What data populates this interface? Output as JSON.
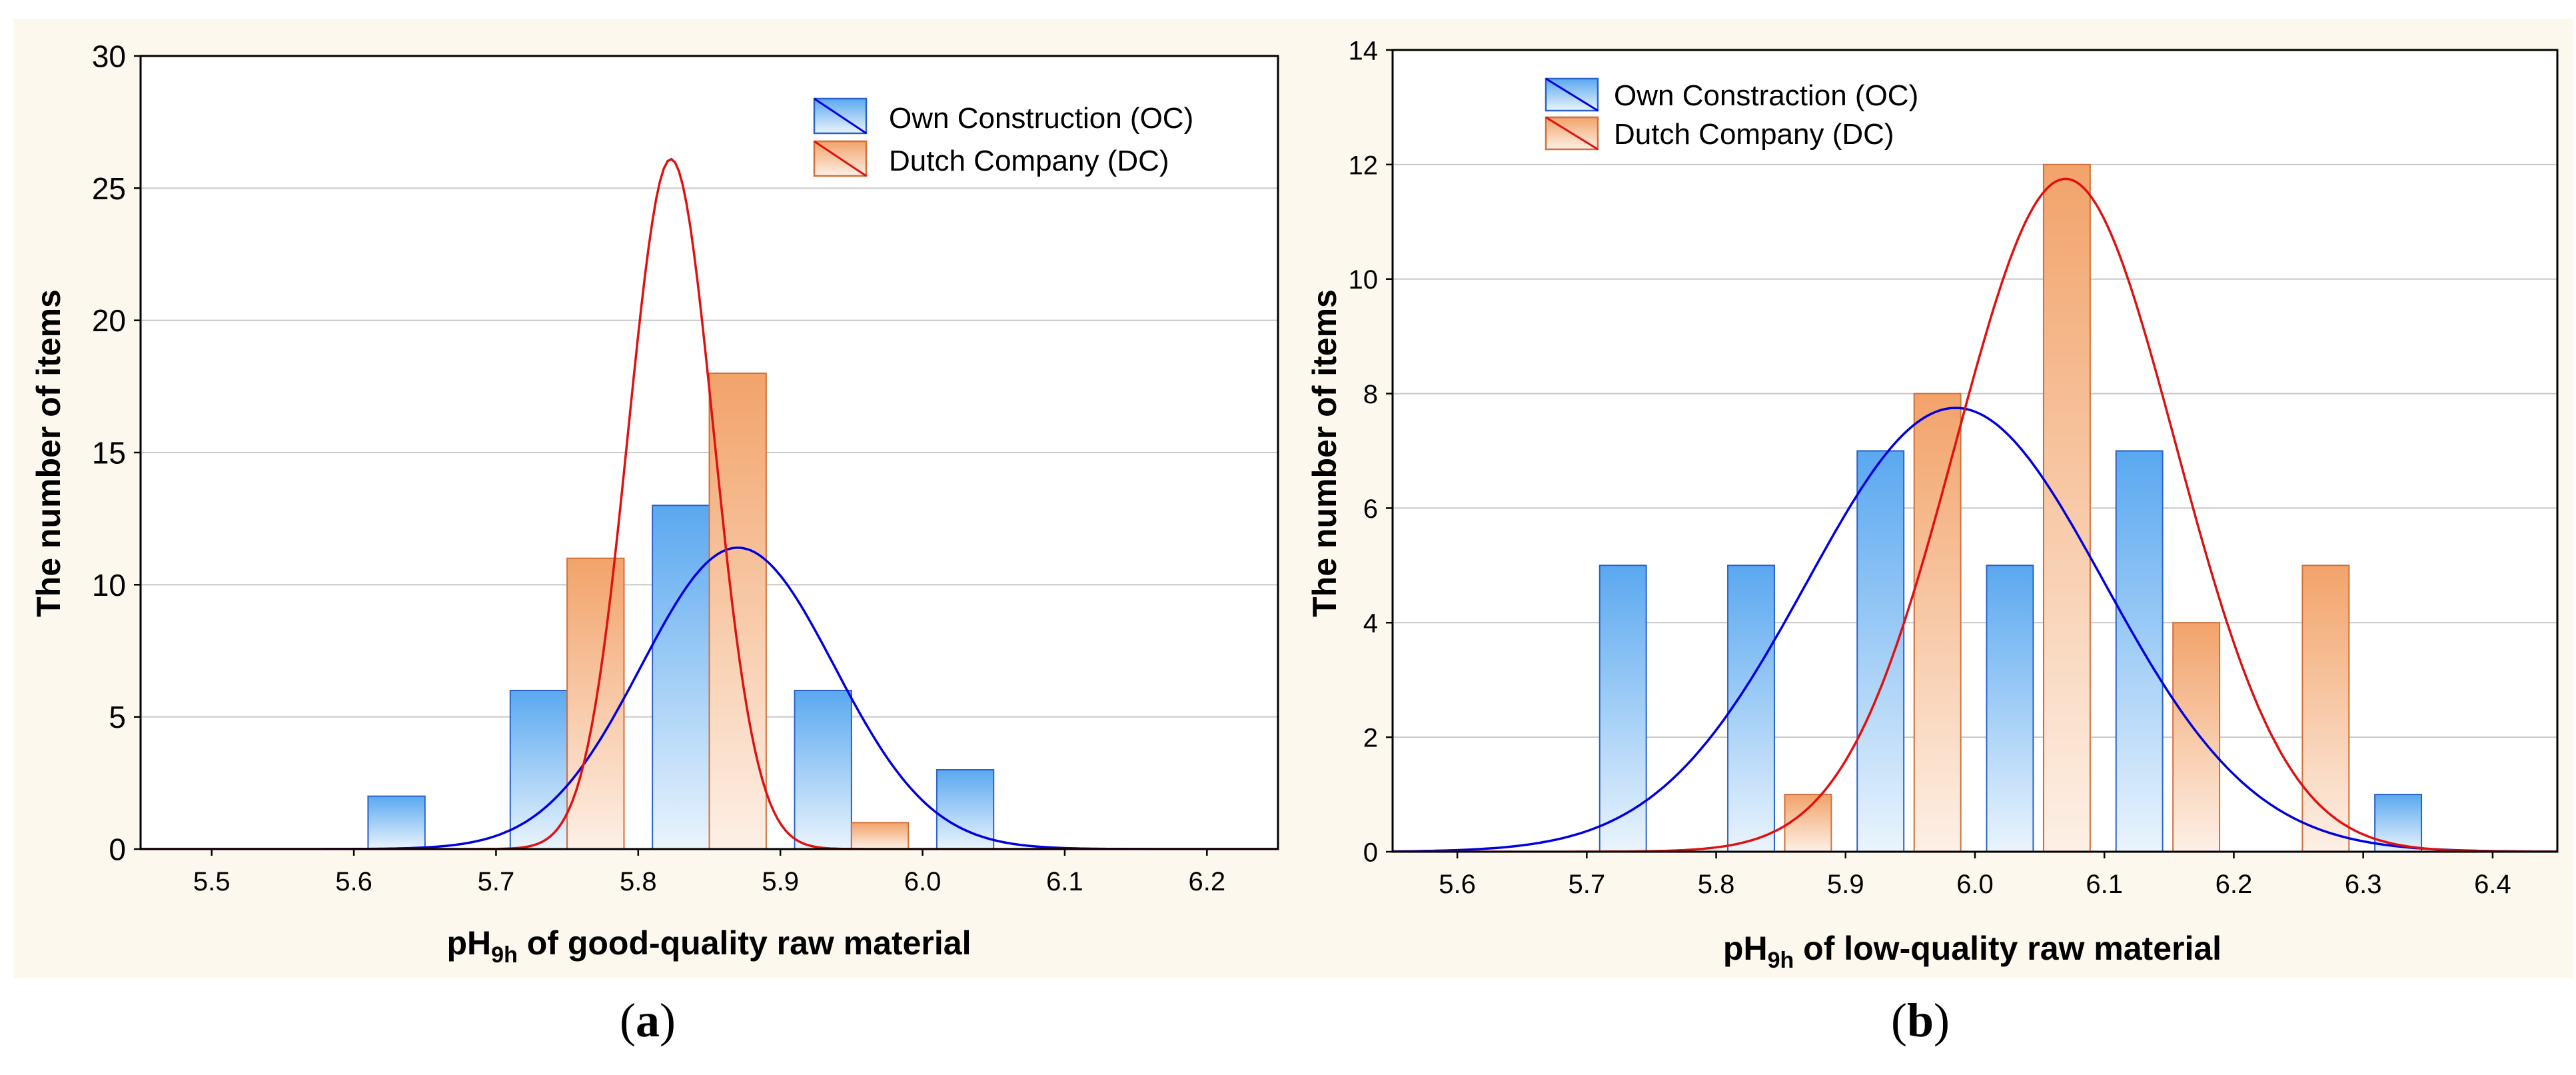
{
  "panels": {
    "a": {
      "label_open": "(",
      "label_letter": "a",
      "label_close": ")"
    },
    "b": {
      "label_open": "(",
      "label_letter": "b",
      "label_close": ")"
    }
  },
  "colors": {
    "panel_bg": "#fdf8ee",
    "oc_bar_top": "#5aa8f0",
    "oc_bar_bottom": "#eaf4fd",
    "oc_edge": "#2a62c8",
    "oc_curve": "#0000e0",
    "dc_bar_top": "#f2a36a",
    "dc_bar_bottom": "#fdf0e6",
    "dc_edge": "#d0703a",
    "dc_curve": "#e01010",
    "grid": "#c8c8c8"
  },
  "chart_data": [
    {
      "type": "bar",
      "panel": "a",
      "xlabel_main": "pH",
      "xlabel_sub": "9h",
      "xlabel_rest": " of good-quality raw material",
      "ylabel": "The number of items",
      "xlim": [
        5.45,
        6.25
      ],
      "ylim": [
        0,
        30
      ],
      "x_ticks": [
        "5.5",
        "5.6",
        "5.7",
        "5.8",
        "5.9",
        "6.0",
        "6.1",
        "6.2"
      ],
      "y_ticks": [
        "0",
        "5",
        "10",
        "15",
        "20",
        "25",
        "30"
      ],
      "bin_width": 0.04,
      "legend": [
        "Own Construction (OC)",
        "Dutch Company (DC)"
      ],
      "legend_position": "top-right",
      "series": [
        {
          "name": "Own Construction (OC)",
          "key": "oc",
          "x": [
            5.63,
            5.73,
            5.83,
            5.93,
            6.03
          ],
          "values": [
            2,
            6,
            13,
            6,
            3
          ],
          "curve": {
            "mean": 5.87,
            "sd": 0.068,
            "peak": 11.4
          }
        },
        {
          "name": "Dutch Company (DC)",
          "key": "dc",
          "x": [
            5.77,
            5.87,
            5.97
          ],
          "values": [
            11,
            18,
            1
          ],
          "curve": {
            "mean": 5.823,
            "sd": 0.03,
            "peak": 26.1
          }
        }
      ]
    },
    {
      "type": "bar",
      "panel": "b",
      "xlabel_main": "pH",
      "xlabel_sub": "9h",
      "xlabel_rest": " of low-quality raw material",
      "ylabel": "The number of items",
      "xlim": [
        5.55,
        6.45
      ],
      "ylim": [
        0,
        14
      ],
      "x_ticks": [
        "5.6",
        "5.7",
        "5.8",
        "5.9",
        "6.0",
        "6.1",
        "6.2",
        "6.3",
        "6.4"
      ],
      "y_ticks": [
        "0",
        "2",
        "4",
        "6",
        "8",
        "10",
        "12",
        "14"
      ],
      "bin_width": 0.036,
      "legend": [
        "Own Constraction (OC)",
        "Dutch Company (DC)"
      ],
      "legend_position": "top-left",
      "series": [
        {
          "name": "Own Constraction (OC)",
          "key": "oc",
          "x": [
            5.728,
            5.827,
            5.927,
            6.027,
            6.127,
            6.327
          ],
          "values": [
            5,
            5,
            7,
            5,
            7,
            1
          ],
          "curve": {
            "mean": 5.985,
            "sd": 0.115,
            "peak": 7.75
          }
        },
        {
          "name": "Dutch Company (DC)",
          "key": "dc",
          "x": [
            5.871,
            5.971,
            6.071,
            6.171,
            6.271
          ],
          "values": [
            1,
            8,
            12,
            4,
            5
          ],
          "curve": {
            "mean": 6.07,
            "sd": 0.085,
            "peak": 11.75
          }
        }
      ]
    }
  ]
}
